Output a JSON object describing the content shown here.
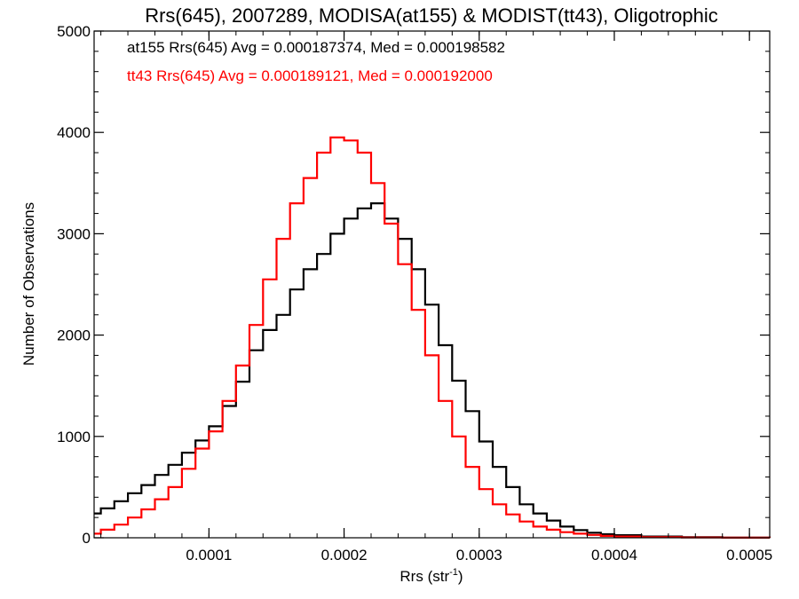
{
  "chart_data": {
    "type": "line",
    "style": "histogram-step",
    "title": "Rrs(645), 2007289, MODISA(at155) & MODIST(tt43), Oligotrophic",
    "xlabel_main": "Rrs (str",
    "xlabel_sup": "-1",
    "xlabel_close": ")",
    "ylabel": "Number of Observations",
    "xlim": [
      1.5e-05,
      0.000515
    ],
    "ylim": [
      0,
      5000
    ],
    "x_ticks": [
      0.0001,
      0.0002,
      0.0003,
      0.0004,
      0.0005
    ],
    "x_tick_labels": [
      "0.0001",
      "0.0002",
      "0.0003",
      "0.0004",
      "0.0005"
    ],
    "y_ticks": [
      0,
      1000,
      2000,
      3000,
      4000,
      5000
    ],
    "y_tick_labels": [
      "0",
      "1000",
      "2000",
      "3000",
      "4000",
      "5000"
    ],
    "grid": false,
    "legend_placement": "top-left",
    "series": [
      {
        "name": "at155 Rrs(645) Avg = 0.000187374, Med = 0.000198582",
        "color": "#000000",
        "x": [
          1.5e-05,
          2e-05,
          3e-05,
          4e-05,
          5e-05,
          6e-05,
          7e-05,
          8e-05,
          9e-05,
          0.0001,
          0.00011,
          0.00012,
          0.00013,
          0.00014,
          0.00015,
          0.00016,
          0.00017,
          0.00018,
          0.00019,
          0.0002,
          0.00021,
          0.00022,
          0.00023,
          0.00024,
          0.00025,
          0.00026,
          0.00027,
          0.00028,
          0.00029,
          0.0003,
          0.00031,
          0.00032,
          0.00033,
          0.00034,
          0.00035,
          0.00036,
          0.00037,
          0.00038,
          0.00039,
          0.0004,
          0.00042,
          0.00045,
          0.00048,
          0.000515
        ],
        "y": [
          240,
          290,
          360,
          440,
          520,
          620,
          720,
          840,
          960,
          1100,
          1300,
          1540,
          1850,
          2050,
          2200,
          2450,
          2650,
          2800,
          3000,
          3150,
          3250,
          3300,
          3150,
          2950,
          2650,
          2300,
          1900,
          1550,
          1250,
          950,
          700,
          500,
          330,
          240,
          170,
          110,
          75,
          50,
          35,
          25,
          12,
          5,
          2,
          1
        ]
      },
      {
        "name": "tt43 Rrs(645) Avg = 0.000189121, Med = 0.000192000",
        "color": "#ff0000",
        "x": [
          1.5e-05,
          2e-05,
          3e-05,
          4e-05,
          5e-05,
          6e-05,
          7e-05,
          8e-05,
          9e-05,
          0.0001,
          0.00011,
          0.00012,
          0.00013,
          0.00014,
          0.00015,
          0.00016,
          0.00017,
          0.00018,
          0.00019,
          0.0002,
          0.00021,
          0.00022,
          0.00023,
          0.00024,
          0.00025,
          0.00026,
          0.00027,
          0.00028,
          0.00029,
          0.0003,
          0.00031,
          0.00032,
          0.00033,
          0.00034,
          0.00035,
          0.00036,
          0.00037,
          0.00038,
          0.00039,
          0.0004,
          0.00042,
          0.00045,
          0.00048,
          0.000515
        ],
        "y": [
          40,
          80,
          130,
          200,
          280,
          380,
          500,
          680,
          880,
          1050,
          1350,
          1700,
          2100,
          2550,
          2950,
          3300,
          3550,
          3800,
          3950,
          3920,
          3800,
          3500,
          3100,
          2700,
          2250,
          1800,
          1350,
          1000,
          700,
          480,
          330,
          230,
          160,
          110,
          80,
          55,
          40,
          28,
          18,
          12,
          6,
          3,
          1,
          0
        ]
      }
    ]
  }
}
